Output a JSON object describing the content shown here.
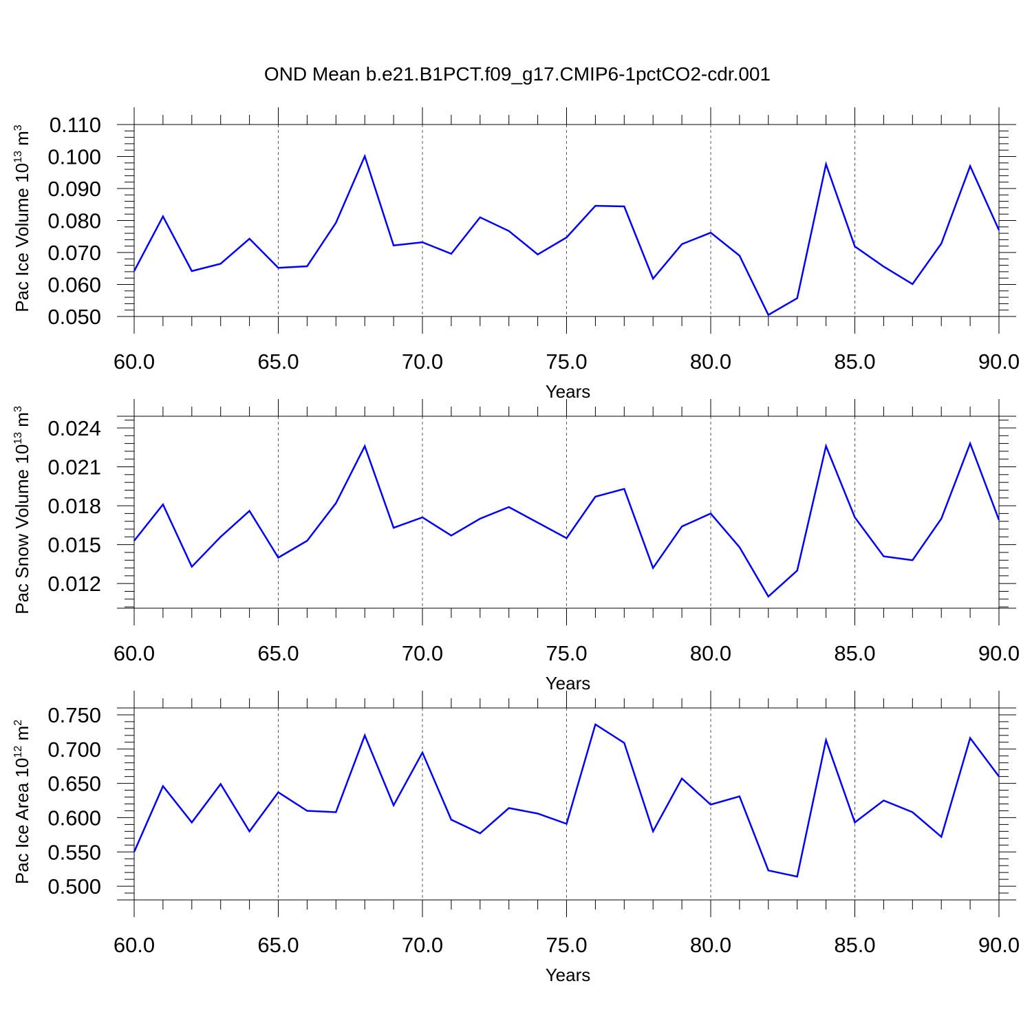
{
  "title": "OND Mean b.e21.B1PCT.f09_g17.CMIP6-1pctCO2-cdr.001",
  "chart_data": [
    {
      "type": "line",
      "xlabel": "Years",
      "ylabel": "Pac Ice Volume 10",
      "ylabel_sup": "13",
      "ylabel_unit": " m",
      "ylabel_unit_sup": "3",
      "xlim": [
        60,
        90
      ],
      "ylim": [
        0.05,
        0.11
      ],
      "x_ticks": [
        60,
        65,
        70,
        75,
        80,
        85,
        90
      ],
      "x_tick_labels": [
        "60.0",
        "65.0",
        "70.0",
        "75.0",
        "80.0",
        "85.0",
        "90.0"
      ],
      "y_ticks": [
        0.05,
        0.06,
        0.07,
        0.08,
        0.09,
        0.1,
        0.11
      ],
      "y_tick_labels": [
        "0.050",
        "0.060",
        "0.070",
        "0.080",
        "0.090",
        "0.100",
        "0.110"
      ],
      "grid": "vertical dashed at major x ticks",
      "line_color": "#0000ff",
      "x": [
        60,
        61,
        62,
        63,
        64,
        65,
        66,
        67,
        68,
        69,
        70,
        71,
        72,
        73,
        74,
        75,
        76,
        77,
        78,
        79,
        80,
        81,
        82,
        83,
        84,
        85,
        86,
        87,
        88,
        89,
        90
      ],
      "values": [
        0.0642,
        0.0813,
        0.0642,
        0.0665,
        0.0743,
        0.0652,
        0.0657,
        0.0793,
        0.1001,
        0.0722,
        0.0732,
        0.0696,
        0.081,
        0.0767,
        0.0694,
        0.0747,
        0.0846,
        0.0844,
        0.0618,
        0.0726,
        0.0762,
        0.069,
        0.0505,
        0.0557,
        0.0976,
        0.0719,
        0.0656,
        0.0601,
        0.0728,
        0.097,
        0.077
      ]
    },
    {
      "type": "line",
      "xlabel": "Years",
      "ylabel": "Pac Snow Volume 10",
      "ylabel_sup": "13",
      "ylabel_unit": " m",
      "ylabel_unit_sup": "3",
      "xlim": [
        60,
        90
      ],
      "ylim": [
        0.0101,
        0.0249
      ],
      "x_ticks": [
        60,
        65,
        70,
        75,
        80,
        85,
        90
      ],
      "x_tick_labels": [
        "60.0",
        "65.0",
        "70.0",
        "75.0",
        "80.0",
        "85.0",
        "90.0"
      ],
      "y_ticks": [
        0.012,
        0.015,
        0.018,
        0.021,
        0.024
      ],
      "y_tick_labels": [
        "0.012",
        "0.015",
        "0.018",
        "0.021",
        "0.024"
      ],
      "grid": "vertical dashed at major x ticks",
      "line_color": "#0000ff",
      "x": [
        60,
        61,
        62,
        63,
        64,
        65,
        66,
        67,
        68,
        69,
        70,
        71,
        72,
        73,
        74,
        75,
        76,
        77,
        78,
        79,
        80,
        81,
        82,
        83,
        84,
        85,
        86,
        87,
        88,
        89,
        90
      ],
      "values": [
        0.0153,
        0.0181,
        0.0133,
        0.0156,
        0.0176,
        0.014,
        0.0153,
        0.0182,
        0.0226,
        0.0163,
        0.0171,
        0.0157,
        0.017,
        0.0179,
        0.0167,
        0.0155,
        0.0187,
        0.0193,
        0.0132,
        0.0164,
        0.0174,
        0.0148,
        0.011,
        0.013,
        0.0226,
        0.0171,
        0.0141,
        0.0138,
        0.017,
        0.0228,
        0.0169
      ]
    },
    {
      "type": "line",
      "xlabel": "Years",
      "ylabel": "Pac Ice Area 10",
      "ylabel_sup": "12",
      "ylabel_unit": " m",
      "ylabel_unit_sup": "2",
      "xlim": [
        60,
        90
      ],
      "ylim": [
        0.48,
        0.76
      ],
      "x_ticks": [
        60,
        65,
        70,
        75,
        80,
        85,
        90
      ],
      "x_tick_labels": [
        "60.0",
        "65.0",
        "70.0",
        "75.0",
        "80.0",
        "85.0",
        "90.0"
      ],
      "y_ticks": [
        0.5,
        0.55,
        0.6,
        0.65,
        0.7,
        0.75
      ],
      "y_tick_labels": [
        "0.500",
        "0.550",
        "0.600",
        "0.650",
        "0.700",
        "0.750"
      ],
      "grid": "vertical dashed at major x ticks",
      "line_color": "#0000ff",
      "x": [
        60,
        61,
        62,
        63,
        64,
        65,
        66,
        67,
        68,
        69,
        70,
        71,
        72,
        73,
        74,
        75,
        76,
        77,
        78,
        79,
        80,
        81,
        82,
        83,
        84,
        85,
        86,
        87,
        88,
        89,
        90
      ],
      "values": [
        0.55,
        0.646,
        0.593,
        0.649,
        0.58,
        0.637,
        0.61,
        0.608,
        0.72,
        0.618,
        0.695,
        0.597,
        0.577,
        0.614,
        0.606,
        0.591,
        0.736,
        0.709,
        0.58,
        0.657,
        0.619,
        0.631,
        0.523,
        0.514,
        0.713,
        0.593,
        0.625,
        0.608,
        0.572,
        0.716,
        0.66
      ]
    }
  ]
}
